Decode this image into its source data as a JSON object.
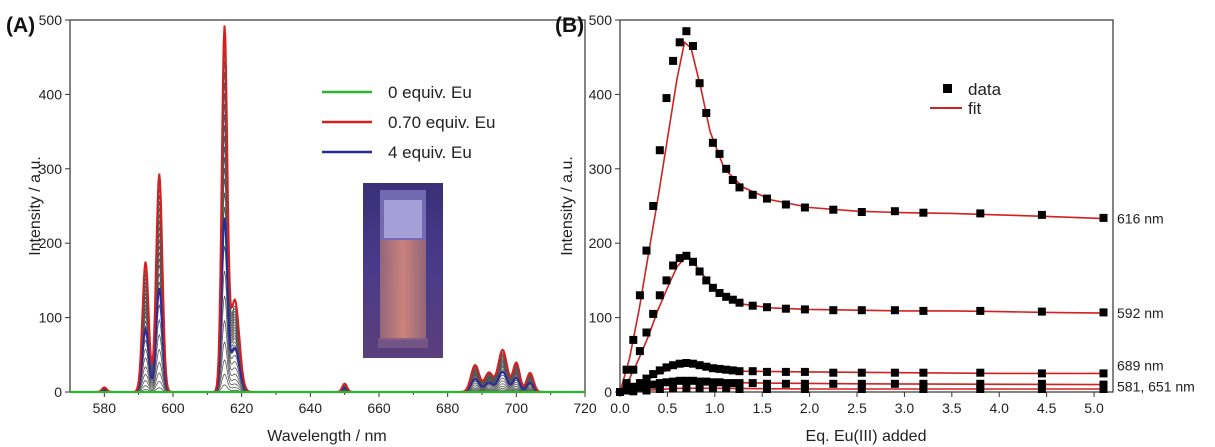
{
  "chart_data": [
    {
      "panel_label": "(A)",
      "type": "line",
      "xlabel": "Wavelength / nm",
      "ylabel": "Intensity / a.u.",
      "xlim": [
        570,
        720
      ],
      "ylim": [
        0,
        500
      ],
      "xticks": [
        "580",
        "600",
        "620",
        "640",
        "660",
        "680",
        "700",
        "720"
      ],
      "yticks": [
        "0",
        "100",
        "200",
        "300",
        "400",
        "500"
      ],
      "legend": [
        {
          "name": "0 equiv. Eu",
          "color": "#2db52d"
        },
        {
          "name": "0.70 equiv. Eu",
          "color": "#d42020"
        },
        {
          "name": "4 equiv. Eu",
          "color": "#2a2a9a"
        }
      ],
      "peaks": [
        {
          "x": 580,
          "height": 6,
          "width": 0.7
        },
        {
          "x": 592,
          "height": 170,
          "width": 0.9
        },
        {
          "x": 596,
          "height": 285,
          "width": 0.9
        },
        {
          "x": 615,
          "height": 470,
          "width": 0.8
        },
        {
          "x": 618,
          "height": 120,
          "width": 1.3
        },
        {
          "x": 650,
          "height": 11,
          "width": 0.7
        },
        {
          "x": 688,
          "height": 35,
          "width": 1.2
        },
        {
          "x": 692,
          "height": 25,
          "width": 1.2
        },
        {
          "x": 696,
          "height": 55,
          "width": 1.3
        },
        {
          "x": 700,
          "height": 38,
          "width": 1.0
        },
        {
          "x": 704,
          "height": 25,
          "width": 1.0
        }
      ],
      "gray_scales": [
        0.02,
        0.05,
        0.09,
        0.14,
        0.2,
        0.27,
        0.34,
        0.41,
        0.47,
        0.52,
        0.56,
        0.6,
        0.63,
        0.66,
        0.69,
        0.72,
        0.75,
        0.78,
        0.81,
        0.84,
        0.87,
        0.9,
        0.93,
        0.96
      ],
      "series_scales": {
        "green": 0.0,
        "red": 1.03,
        "blue": 0.49
      },
      "inset": "photo of cuvette with orange-red emission"
    },
    {
      "panel_label": "(B)",
      "type": "scatter",
      "xlabel": "Eq. Eu(III) added",
      "ylabel": "Intensity / a.u.",
      "xlim": [
        0,
        5.2
      ],
      "ylim": [
        0,
        500
      ],
      "xticks": [
        "0.0",
        "0.5",
        "1.0",
        "1.5",
        "2.0",
        "2.5",
        "3.0",
        "3.5",
        "4.0",
        "4.5",
        "5.0"
      ],
      "yticks": [
        "0",
        "100",
        "200",
        "300",
        "400",
        "500"
      ],
      "legend": [
        {
          "name": "data",
          "marker": "square",
          "color": "#000000"
        },
        {
          "name": "fit",
          "color": "#d42020"
        }
      ],
      "series": [
        {
          "name": "616 nm",
          "x": [
            0.0,
            0.07,
            0.14,
            0.21,
            0.28,
            0.35,
            0.42,
            0.49,
            0.56,
            0.63,
            0.7,
            0.77,
            0.84,
            0.91,
            0.98,
            1.05,
            1.12,
            1.19,
            1.26,
            1.4,
            1.55,
            1.75,
            1.95,
            2.25,
            2.55,
            2.9,
            3.2,
            3.8,
            4.45,
            5.1
          ],
          "y": [
            0,
            30,
            70,
            130,
            190,
            250,
            325,
            395,
            445,
            470,
            485,
            465,
            415,
            375,
            335,
            320,
            300,
            285,
            275,
            265,
            260,
            252,
            248,
            245,
            242,
            243,
            241,
            240,
            238,
            234
          ],
          "fit": [
            [
              0.0,
              0
            ],
            [
              0.1,
              45
            ],
            [
              0.2,
              110
            ],
            [
              0.3,
              185
            ],
            [
              0.4,
              260
            ],
            [
              0.5,
              340
            ],
            [
              0.6,
              420
            ],
            [
              0.68,
              470
            ],
            [
              0.75,
              462
            ],
            [
              0.85,
              410
            ],
            [
              0.95,
              350
            ],
            [
              1.1,
              300
            ],
            [
              1.3,
              275
            ],
            [
              1.6,
              258
            ],
            [
              2.0,
              248
            ],
            [
              2.5,
              243
            ],
            [
              3.0,
              241
            ],
            [
              3.5,
              240
            ],
            [
              4.0,
              238
            ],
            [
              4.5,
              236
            ],
            [
              5.1,
              233
            ]
          ]
        },
        {
          "name": "592 nm",
          "x": [
            0.0,
            0.07,
            0.14,
            0.21,
            0.28,
            0.35,
            0.42,
            0.49,
            0.56,
            0.63,
            0.7,
            0.77,
            0.84,
            0.91,
            0.98,
            1.05,
            1.12,
            1.19,
            1.26,
            1.4,
            1.55,
            1.75,
            1.95,
            2.25,
            2.55,
            2.9,
            3.2,
            3.8,
            4.45,
            5.1
          ],
          "y": [
            0,
            12,
            30,
            55,
            80,
            105,
            130,
            150,
            170,
            180,
            183,
            175,
            162,
            150,
            140,
            133,
            128,
            124,
            120,
            116,
            114,
            112,
            111,
            110,
            110,
            110,
            109,
            109,
            108,
            107
          ],
          "fit": [
            [
              0.0,
              0
            ],
            [
              0.1,
              18
            ],
            [
              0.2,
              45
            ],
            [
              0.3,
              75
            ],
            [
              0.4,
              110
            ],
            [
              0.5,
              140
            ],
            [
              0.6,
              168
            ],
            [
              0.68,
              180
            ],
            [
              0.75,
              178
            ],
            [
              0.85,
              162
            ],
            [
              0.95,
              145
            ],
            [
              1.1,
              128
            ],
            [
              1.3,
              118
            ],
            [
              1.6,
              113
            ],
            [
              2.0,
              111
            ],
            [
              2.5,
              110
            ],
            [
              3.0,
              109
            ],
            [
              3.5,
              109
            ],
            [
              4.0,
              108
            ],
            [
              4.5,
              107
            ],
            [
              5.1,
              106
            ]
          ]
        },
        {
          "name": "689 nm",
          "x": [
            0.0,
            0.07,
            0.14,
            0.21,
            0.28,
            0.35,
            0.42,
            0.49,
            0.56,
            0.63,
            0.7,
            0.77,
            0.84,
            0.91,
            0.98,
            1.05,
            1.12,
            1.19,
            1.26,
            1.4,
            1.55,
            1.75,
            1.95,
            2.25,
            2.55,
            2.9,
            3.2,
            3.8,
            4.45,
            5.1
          ],
          "y": [
            0,
            3,
            7,
            12,
            18,
            24,
            29,
            33,
            36,
            38,
            39,
            38,
            36,
            34,
            32,
            31,
            30,
            29,
            28,
            28,
            27,
            27,
            27,
            26,
            26,
            26,
            26,
            26,
            25,
            25
          ],
          "fit": [
            [
              0.0,
              0
            ],
            [
              0.2,
              10
            ],
            [
              0.4,
              24
            ],
            [
              0.6,
              35
            ],
            [
              0.7,
              38
            ],
            [
              0.85,
              35
            ],
            [
              1.0,
              31
            ],
            [
              1.3,
              28
            ],
            [
              2.0,
              27
            ],
            [
              3.0,
              26
            ],
            [
              4.0,
              25
            ],
            [
              5.1,
              25
            ]
          ]
        },
        {
          "name": "581, 651 nm",
          "x": [
            0.0,
            0.07,
            0.14,
            0.21,
            0.28,
            0.35,
            0.42,
            0.49,
            0.56,
            0.63,
            0.7,
            0.77,
            0.84,
            0.91,
            0.98,
            1.05,
            1.12,
            1.19,
            1.26,
            1.4,
            1.55,
            1.75,
            1.95,
            2.25,
            2.55,
            2.9,
            3.2,
            3.8,
            4.45,
            5.1
          ],
          "y": [
            0,
            2,
            4,
            6,
            8,
            10,
            12,
            13,
            14,
            15,
            15,
            15,
            14,
            14,
            13,
            13,
            12,
            12,
            12,
            12,
            11,
            11,
            11,
            11,
            11,
            11,
            11,
            11,
            11,
            10
          ],
          "fit": [
            [
              0.0,
              0
            ],
            [
              0.3,
              7
            ],
            [
              0.6,
              14
            ],
            [
              0.7,
              15
            ],
            [
              1.0,
              13
            ],
            [
              1.5,
              12
            ],
            [
              2.5,
              11
            ],
            [
              5.1,
              10
            ]
          ]
        },
        {
          "name": "",
          "x": [
            0.0,
            0.14,
            0.28,
            0.42,
            0.56,
            0.7,
            0.84,
            0.98,
            1.12,
            1.26,
            1.55,
            1.95,
            2.55,
            3.2,
            3.8,
            4.45,
            5.1
          ],
          "y": [
            0,
            1,
            2,
            4,
            5,
            5,
            5,
            5,
            5,
            4,
            4,
            4,
            4,
            4,
            4,
            4,
            4
          ],
          "fit": [
            [
              0.0,
              0
            ],
            [
              0.6,
              5
            ],
            [
              1.0,
              5
            ],
            [
              2.0,
              4
            ],
            [
              5.1,
              4
            ]
          ]
        }
      ]
    }
  ]
}
